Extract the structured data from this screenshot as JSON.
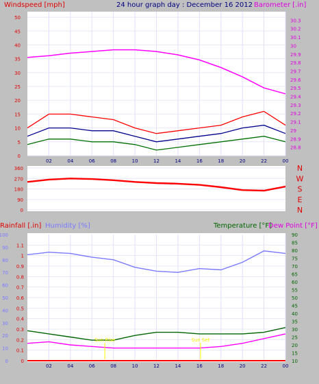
{
  "chart_data": [
    {
      "type": "line",
      "title": "24 hour graph day : December 16 2012",
      "left_axis_label": "Windspeed [mph]",
      "right_axis_label": "Barometer [.in]",
      "x_ticks": [
        "02",
        "04",
        "06",
        "08",
        "10",
        "12",
        "14",
        "16",
        "18",
        "20",
        "22",
        "00"
      ],
      "left_ticks": [
        "0",
        "5",
        "10",
        "15",
        "20",
        "25",
        "30",
        "35",
        "40",
        "45",
        "50"
      ],
      "right_ticks": [
        "28.8",
        "28.9",
        "29",
        "29.1",
        "29.2",
        "29.3",
        "29.4",
        "29.5",
        "29.6",
        "29.7",
        "29.8",
        "29.9",
        "30",
        "30.1",
        "30.2",
        "30.3"
      ],
      "ylim_left": [
        0,
        52
      ],
      "ylim_right": [
        28.7,
        30.4
      ],
      "colors": {
        "gust": "#ff0000",
        "average": "#00008b",
        "wind_low": "#007000",
        "barometer": "#ff00ff"
      },
      "x": [
        0,
        2,
        4,
        6,
        8,
        10,
        12,
        14,
        16,
        18,
        20,
        22,
        24
      ],
      "series": [
        {
          "key": "barometer",
          "axis": "right",
          "values": [
            29.86,
            29.88,
            29.91,
            29.93,
            29.95,
            29.95,
            29.93,
            29.89,
            29.83,
            29.74,
            29.63,
            29.5,
            29.43
          ]
        },
        {
          "key": "gust",
          "axis": "left",
          "values": [
            10,
            15,
            15,
            14,
            13,
            10,
            8,
            9,
            10,
            11,
            14,
            16,
            11
          ]
        },
        {
          "key": "average",
          "axis": "left",
          "values": [
            7,
            10,
            10,
            9,
            9,
            7,
            5,
            6,
            7,
            8,
            10,
            11,
            8
          ]
        },
        {
          "key": "wind_low",
          "axis": "left",
          "values": [
            4,
            6,
            6,
            5,
            5,
            4,
            2,
            3,
            4,
            5,
            6,
            7,
            5
          ]
        }
      ]
    },
    {
      "type": "line",
      "left_ticks": [
        "0",
        "90",
        "180",
        "270",
        "360"
      ],
      "right_labels": [
        "N",
        "W",
        "S",
        "E",
        "N"
      ],
      "ylim": [
        0,
        360
      ],
      "colors": {
        "direction": "#ff0000"
      },
      "x": [
        0,
        2,
        4,
        6,
        8,
        10,
        12,
        14,
        16,
        18,
        20,
        22,
        24
      ],
      "series": [
        {
          "key": "direction",
          "values": [
            240,
            260,
            270,
            265,
            255,
            240,
            230,
            225,
            215,
            195,
            170,
            165,
            200
          ]
        }
      ]
    },
    {
      "type": "line",
      "rain_label": "Rainfall [.in]",
      "humidity_label": "Humidity [%]",
      "temperature_label": "Temperature [°F]",
      "dewpoint_label": "Dew Point [°F]",
      "left_inner_ticks": [
        "0",
        "0.1",
        "0.2",
        "0.3",
        "0.4",
        "0.5",
        "0.6",
        "0.7",
        "0.8",
        "0.9",
        "1",
        "1.1"
      ],
      "left_outer_ticks": [
        "0",
        "10",
        "20",
        "30",
        "40",
        "50",
        "60",
        "70",
        "80",
        "90",
        "100"
      ],
      "right_ticks": [
        "10",
        "15",
        "20",
        "25",
        "30",
        "35",
        "40",
        "45",
        "50",
        "55",
        "60",
        "65",
        "70",
        "75",
        "80",
        "85",
        "90"
      ],
      "x_ticks": [
        "02",
        "04",
        "06",
        "08",
        "10",
        "12",
        "14",
        "16",
        "18",
        "20",
        "22",
        "00"
      ],
      "ylim_humidity": [
        0,
        100
      ],
      "ylim_rain": [
        0,
        1.2
      ],
      "ylim_temperature": [
        10,
        90
      ],
      "colors": {
        "humidity": "#7a7aff",
        "temperature": "#006400",
        "dewpoint": "#ff00ff",
        "rain": "#ff0000",
        "annotation": "#ffff00"
      },
      "x": [
        0,
        2,
        4,
        6,
        8,
        10,
        12,
        14,
        16,
        18,
        20,
        22,
        24
      ],
      "series": [
        {
          "key": "humidity",
          "axis": "humidity",
          "values": [
            84,
            86,
            85,
            82,
            80,
            74,
            71,
            70,
            73,
            72,
            78,
            87,
            85
          ]
        },
        {
          "key": "temperature",
          "axis": "temperature",
          "values": [
            29,
            27,
            25,
            23,
            23,
            26,
            28,
            28,
            27,
            27,
            27,
            28,
            31
          ]
        },
        {
          "key": "dewpoint",
          "axis": "temperature",
          "values": [
            21,
            22,
            20,
            19,
            18,
            18,
            18,
            18,
            18,
            19,
            21,
            24,
            27
          ]
        },
        {
          "key": "rain",
          "axis": "rain",
          "values": [
            0,
            0,
            0,
            0,
            0,
            0,
            0,
            0,
            0,
            0,
            0,
            0,
            0
          ]
        }
      ],
      "annotations": [
        {
          "x": 7.2,
          "label": "Sun Rise"
        },
        {
          "x": 16.1,
          "label": "Sun Set"
        }
      ]
    }
  ]
}
